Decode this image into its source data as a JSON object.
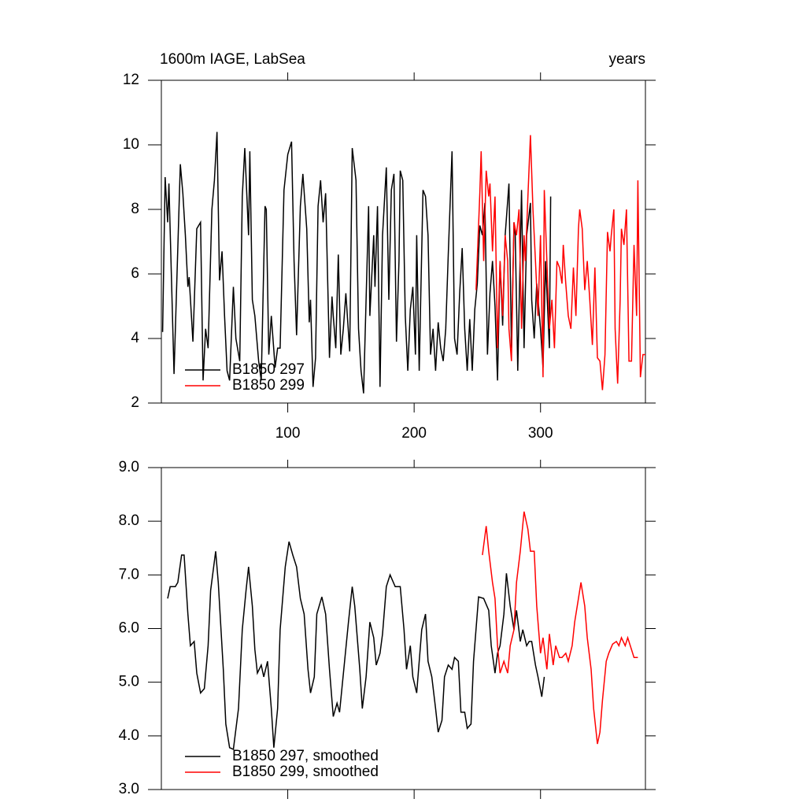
{
  "chart_data": [
    {
      "type": "line",
      "title": "1600m IAGE, LabSea",
      "title_right": "years",
      "xlim": [
        0,
        383
      ],
      "xticks": [
        100,
        200,
        300
      ],
      "ylim": [
        2,
        12
      ],
      "yticks": [
        2,
        4,
        6,
        8,
        10,
        12
      ],
      "legend": "lower left",
      "series": [
        {
          "name": "B1850 297",
          "color": "#000000",
          "x": [
            1,
            3,
            5,
            6,
            10,
            15,
            17,
            19,
            21,
            22,
            25,
            28,
            31,
            33,
            35,
            37,
            40,
            42,
            44,
            46,
            48,
            50,
            52,
            54,
            57,
            59,
            62,
            64,
            66,
            69,
            70,
            72,
            74,
            77,
            79,
            82,
            83,
            85,
            87,
            90,
            92,
            94,
            97,
            100,
            103,
            105,
            107,
            110,
            112,
            115,
            117,
            118,
            120,
            122,
            124,
            126,
            128,
            130,
            133,
            135,
            136,
            138,
            140,
            142,
            144,
            146,
            149,
            151,
            154,
            156,
            158,
            160,
            162,
            164,
            165,
            168,
            169,
            171,
            173,
            175,
            178,
            180,
            182,
            184,
            186,
            188,
            189,
            191,
            193,
            195,
            197,
            199,
            201,
            202,
            204,
            207,
            209,
            211,
            213,
            215,
            217,
            219,
            221,
            223,
            225,
            227,
            230,
            232,
            234,
            236,
            238,
            240,
            242,
            244,
            246,
            248,
            250,
            252,
            254,
            256,
            258,
            260,
            262,
            264,
            266,
            268,
            270,
            272,
            275,
            277,
            279,
            280,
            282,
            285,
            287,
            289,
            292,
            293,
            295,
            297,
            300,
            302,
            304,
            307,
            308
          ],
          "values": [
            4.2,
            9.0,
            7.6,
            8.8,
            2.9,
            9.4,
            8.5,
            7.2,
            5.6,
            5.9,
            3.9,
            7.4,
            7.6,
            2.7,
            4.3,
            3.7,
            8.0,
            8.9,
            10.4,
            5.8,
            6.7,
            4.7,
            3.0,
            2.7,
            5.6,
            4.0,
            3.3,
            8.4,
            9.9,
            7.2,
            9.8,
            5.2,
            4.7,
            3.3,
            2.7,
            8.1,
            8.0,
            3.5,
            4.7,
            3.1,
            3.7,
            3.7,
            8.6,
            9.7,
            10.1,
            6.4,
            4.1,
            8.1,
            9.1,
            7.4,
            4.5,
            5.2,
            2.5,
            3.4,
            8.1,
            8.9,
            7.6,
            8.5,
            3.4,
            5.3,
            4.7,
            3.7,
            6.6,
            3.5,
            4.3,
            5.4,
            3.6,
            9.9,
            8.9,
            4.3,
            3.0,
            2.3,
            5.2,
            8.1,
            4.7,
            7.2,
            5.6,
            8.1,
            2.5,
            7.2,
            9.3,
            5.2,
            8.6,
            9.1,
            3.9,
            6.4,
            9.2,
            8.9,
            4.7,
            3.0,
            4.9,
            5.6,
            3.5,
            7.2,
            3.0,
            8.6,
            8.4,
            7.2,
            3.5,
            4.3,
            3.0,
            4.5,
            3.7,
            3.3,
            4.3,
            6.6,
            9.8,
            4.0,
            3.5,
            5.4,
            6.8,
            4.3,
            3.0,
            4.6,
            3.0,
            4.9,
            5.7,
            7.5,
            7.2,
            8.2,
            3.5,
            5.4,
            6.4,
            5.0,
            2.7,
            6.4,
            4.4,
            7.2,
            8.8,
            3.7,
            7.6,
            7.2,
            3.0,
            8.6,
            3.7,
            7.2,
            8.2,
            5.2,
            4.0,
            5.7,
            4.3,
            3.1,
            6.4,
            3.7,
            8.4
          ]
        },
        {
          "name": "B1850 299",
          "color": "#ff0000",
          "x": [
            249,
            252,
            253,
            255,
            257,
            259,
            260,
            262,
            264,
            266,
            268,
            270,
            272,
            274,
            275,
            277,
            279,
            281,
            283,
            285,
            287,
            288,
            290,
            292,
            294,
            296,
            298,
            300,
            302,
            303,
            305,
            307,
            309,
            311,
            313,
            315,
            317,
            318,
            320,
            322,
            324,
            326,
            328,
            330,
            331,
            333,
            335,
            337,
            339,
            341,
            343,
            345,
            347,
            349,
            351,
            353,
            355,
            356,
            358,
            359,
            361,
            363,
            364,
            366,
            368,
            370,
            372,
            374,
            376,
            377,
            379,
            381,
            383
          ],
          "values": [
            5.5,
            8.5,
            9.8,
            6.4,
            9.2,
            8.4,
            8.8,
            6.7,
            8.4,
            3.7,
            6.4,
            4.7,
            7.2,
            6.4,
            4.3,
            3.3,
            7.6,
            7.2,
            8.0,
            4.3,
            7.2,
            6.4,
            8.4,
            10.3,
            8.0,
            6.4,
            4.7,
            7.2,
            2.8,
            8.6,
            6.4,
            4.3,
            5.2,
            3.7,
            6.4,
            6.2,
            5.7,
            6.9,
            5.7,
            4.7,
            4.3,
            6.2,
            4.7,
            7.4,
            8.0,
            7.4,
            5.5,
            6.4,
            5.2,
            3.8,
            6.2,
            3.4,
            3.3,
            2.4,
            3.5,
            7.3,
            6.7,
            7.2,
            8.0,
            4.3,
            2.6,
            5.2,
            7.4,
            6.9,
            8.0,
            3.3,
            3.3,
            6.9,
            4.7,
            8.9,
            2.8,
            3.5,
            3.5
          ]
        }
      ]
    },
    {
      "type": "line",
      "xlim": [
        0,
        383
      ],
      "xticks": [
        100,
        200,
        300
      ],
      "ylim": [
        3,
        9
      ],
      "yticks": [
        {
          "value": 3,
          "label": "3.0"
        },
        {
          "value": 4,
          "label": "4.0"
        },
        {
          "value": 5,
          "label": "5.0"
        },
        {
          "value": 6,
          "label": "6.0"
        },
        {
          "value": 7,
          "label": "7.0"
        },
        {
          "value": 8,
          "label": "8.0"
        },
        {
          "value": 9,
          "label": "9.0"
        }
      ],
      "legend": "lower left",
      "series": [
        {
          "name": "B1850 297, smoothed",
          "color": "#000000",
          "x": [
            5,
            7,
            11,
            13,
            16,
            18,
            21,
            23,
            26,
            28,
            31,
            34,
            37,
            39,
            43,
            45,
            49,
            51,
            54,
            57,
            61,
            64,
            67,
            69,
            72,
            74,
            76,
            79,
            81,
            84,
            87,
            89,
            92,
            94,
            98,
            101,
            104,
            107,
            110,
            113,
            116,
            118,
            121,
            123,
            127,
            130,
            133,
            136,
            139,
            141,
            145,
            148,
            151,
            153,
            157,
            159,
            162,
            165,
            168,
            170,
            173,
            175,
            178,
            181,
            185,
            189,
            192,
            194,
            197,
            199,
            202,
            206,
            209,
            211,
            214,
            217,
            219,
            222,
            224,
            227,
            230,
            232,
            235,
            237,
            240,
            242,
            245,
            247,
            251,
            255,
            259,
            261,
            264,
            266,
            268,
            271,
            273,
            276,
            279,
            281,
            284,
            286,
            289,
            291,
            293,
            296,
            298,
            301,
            303
          ],
          "values": [
            6.56,
            6.78,
            6.78,
            6.86,
            7.37,
            7.37,
            6.27,
            5.68,
            5.76,
            5.17,
            4.8,
            4.88,
            5.68,
            6.71,
            7.44,
            6.86,
            5.24,
            4.22,
            3.78,
            3.75,
            4.51,
            5.98,
            6.71,
            7.15,
            6.42,
            5.61,
            5.17,
            5.32,
            5.1,
            5.39,
            4.51,
            3.78,
            4.51,
            5.98,
            7.15,
            7.62,
            7.37,
            7.15,
            6.56,
            6.27,
            5.24,
            4.8,
            5.1,
            6.27,
            6.59,
            6.27,
            5.24,
            4.36,
            4.61,
            4.44,
            5.39,
            6.12,
            6.78,
            6.42,
            5.24,
            4.51,
            5.1,
            6.12,
            5.83,
            5.32,
            5.54,
            5.9,
            6.78,
            7.0,
            6.78,
            6.78,
            5.98,
            5.24,
            5.68,
            5.1,
            4.8,
            5.98,
            6.27,
            5.39,
            5.1,
            4.51,
            4.07,
            4.29,
            5.1,
            5.32,
            5.24,
            5.46,
            5.39,
            4.44,
            4.44,
            4.14,
            4.22,
            5.39,
            6.59,
            6.56,
            6.34,
            5.68,
            5.17,
            5.54,
            5.68,
            6.27,
            7.03,
            6.42,
            5.98,
            6.34,
            5.76,
            5.98,
            5.68,
            5.76,
            5.76,
            5.32,
            5.1,
            4.73,
            5.1
          ]
        },
        {
          "name": "B1850 299, smoothed",
          "color": "#ff0000",
          "x": [
            254,
            257,
            259,
            262,
            264,
            266,
            268,
            271,
            274,
            276,
            279,
            281,
            284,
            287,
            290,
            292,
            295,
            297,
            300,
            302,
            305,
            307,
            310,
            312,
            315,
            317,
            320,
            322,
            325,
            327,
            330,
            332,
            335,
            337,
            340,
            342,
            345,
            347,
            349,
            352,
            354,
            357,
            360,
            362,
            364,
            367,
            369,
            372,
            374,
            377
          ],
          "values": [
            7.37,
            7.91,
            7.44,
            6.86,
            6.56,
            5.68,
            5.17,
            5.39,
            5.17,
            5.68,
            5.98,
            6.86,
            7.44,
            8.18,
            7.85,
            7.44,
            7.44,
            6.42,
            5.54,
            5.83,
            5.24,
            5.9,
            5.32,
            5.68,
            5.46,
            5.46,
            5.54,
            5.39,
            5.68,
            6.12,
            6.56,
            6.86,
            6.42,
            5.83,
            5.24,
            4.51,
            3.85,
            4.07,
            4.66,
            5.39,
            5.54,
            5.71,
            5.76,
            5.68,
            5.83,
            5.68,
            5.83,
            5.61,
            5.46,
            5.46
          ]
        }
      ]
    }
  ]
}
